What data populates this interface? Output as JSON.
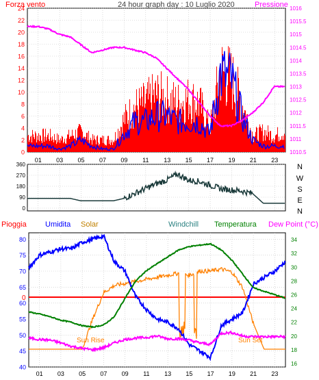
{
  "header": {
    "left_label": "Forza vento",
    "title": "24 hour graph day : 10 Luglio 2020",
    "right_label": "Pressione"
  },
  "colors": {
    "wind": "#ff0000",
    "gust": "#ff0000",
    "wind_avg": "#0000ff",
    "pressure": "#ff00ff",
    "direction": "#1a3a3a",
    "humidity": "#0000ff",
    "solar": "#ff8000",
    "temperature": "#008000",
    "dewpoint": "#ff00ff",
    "rain": "#ff0000",
    "grid": "#c0c0c0",
    "axis_text_left": "#0000ff",
    "axis_text_right": "#008000",
    "wind_tick_text": "#ff0000",
    "pressure_tick_text": "#ff00ff"
  },
  "x_ticks": [
    "01",
    "03",
    "05",
    "07",
    "09",
    "11",
    "13",
    "15",
    "17",
    "19",
    "21",
    "23"
  ],
  "bottom_labels": {
    "rain": "Pioggia",
    "humidity": "Umidita",
    "solar": "Solar",
    "windchill": "Windchill",
    "temperature": "Temperatura",
    "dewpoint": "Dew Point (°C)",
    "sunrise": "Sun Rise",
    "sunset": "Sun Set",
    "rain_value": "0"
  },
  "chart_data": [
    {
      "type": "line",
      "name_panel": "wind_pressure",
      "ylim_left": [
        0,
        24
      ],
      "yticks_left": [
        "0",
        "2",
        "4",
        "6",
        "8",
        "10",
        "12",
        "14",
        "16",
        "18",
        "20",
        "22",
        "24"
      ],
      "ylim_right": [
        1010.5,
        1016
      ],
      "yticks_right": [
        "1010.5",
        "1011",
        "1011.5",
        "1012",
        "1012.5",
        "1013",
        "1013.5",
        "1014",
        "1014.5",
        "1015",
        "1015.5",
        "1016"
      ],
      "x_hours": [
        0,
        1,
        2,
        3,
        4,
        5,
        6,
        7,
        8,
        9,
        10,
        11,
        12,
        13,
        14,
        15,
        16,
        17,
        18,
        19,
        20,
        21,
        22,
        23,
        24
      ],
      "gust_max": [
        4,
        4,
        4,
        3,
        4,
        5,
        3,
        3,
        3,
        8,
        11,
        12,
        14,
        13,
        12,
        13,
        12,
        6,
        20,
        18,
        12,
        4,
        5,
        4,
        5
      ],
      "wind_avg": [
        1,
        1,
        1,
        0.5,
        1,
        2,
        1,
        0.5,
        0.5,
        3,
        5,
        5,
        6,
        6,
        5,
        5,
        5,
        3,
        13,
        12,
        6,
        2,
        1,
        1,
        1
      ],
      "pressure": [
        1015.3,
        1015.3,
        1015.2,
        1015.0,
        1014.9,
        1014.6,
        1014.3,
        1014.4,
        1014.5,
        1014.5,
        1014.4,
        1014.3,
        1014.1,
        1013.7,
        1013.3,
        1012.9,
        1012.4,
        1011.9,
        1011.5,
        1011.5,
        1011.7,
        1012.0,
        1012.4,
        1013.0,
        1013.0
      ]
    },
    {
      "type": "line",
      "name_panel": "wind_direction",
      "ylim": [
        0,
        360
      ],
      "yticks": [
        "0",
        "90",
        "180",
        "270",
        "360"
      ],
      "compass": [
        "N",
        "W",
        "S",
        "E",
        "N"
      ],
      "x_hours": [
        0,
        1,
        2,
        3,
        4,
        5,
        6,
        7,
        8,
        9,
        10,
        11,
        12,
        13,
        14,
        15,
        16,
        17,
        18,
        19,
        20,
        21,
        22,
        23,
        24
      ],
      "direction": [
        80,
        80,
        80,
        80,
        80,
        60,
        60,
        60,
        60,
        80,
        120,
        160,
        200,
        230,
        280,
        230,
        220,
        190,
        160,
        150,
        140,
        120,
        40,
        40,
        40
      ]
    },
    {
      "type": "line",
      "name_panel": "temp_hum",
      "ylim_left": [
        40,
        82
      ],
      "yticks_left": [
        "40",
        "45",
        "50",
        "55",
        "60",
        "65",
        "70",
        "75",
        "80"
      ],
      "ylim_right": [
        15.5,
        35
      ],
      "yticks_right": [
        "16",
        "18",
        "20",
        "22",
        "24",
        "26",
        "28",
        "30",
        "32",
        "34"
      ],
      "x_hours": [
        0,
        1,
        2,
        3,
        4,
        5,
        6,
        7,
        8,
        9,
        10,
        11,
        12,
        13,
        14,
        15,
        16,
        17,
        18,
        19,
        20,
        21,
        22,
        23,
        24
      ],
      "humidity": [
        71,
        75,
        76,
        77,
        77,
        79,
        80,
        81,
        73,
        70,
        62,
        58,
        55,
        54,
        52,
        47,
        45,
        43,
        53,
        55,
        57,
        66,
        68,
        70,
        73
      ],
      "temperature": [
        23.5,
        23.2,
        22.8,
        22.3,
        22.0,
        21.5,
        21.3,
        21.6,
        22.8,
        25.5,
        28.0,
        29.5,
        30.5,
        31.5,
        32.5,
        33.0,
        33.2,
        33.4,
        32.5,
        31.0,
        29.0,
        27.0,
        26.5,
        26.0,
        25.5
      ],
      "dewpoint": [
        19.7,
        19.5,
        19.4,
        19.0,
        18.5,
        18.2,
        18.0,
        18.3,
        19.0,
        19.5,
        19.7,
        19.8,
        20.0,
        19.6,
        19.6,
        19.4,
        19.0,
        18.8,
        20.4,
        20.5,
        20.0,
        19.9,
        19.9,
        19.9,
        19.9
      ],
      "solar_relative": [
        0,
        0,
        0,
        0,
        0,
        0,
        0.3,
        0.55,
        0.62,
        0.64,
        0.66,
        0.68,
        0.7,
        0.72,
        0.74,
        0.72,
        0.76,
        0.76,
        0.78,
        0.75,
        0.6,
        0.25,
        0,
        0,
        0
      ],
      "rain": [
        0,
        0,
        0,
        0,
        0,
        0,
        0,
        0,
        0,
        0,
        0,
        0,
        0,
        0,
        0,
        0,
        0,
        0,
        0,
        0,
        0,
        0,
        0,
        0,
        0
      ]
    }
  ]
}
